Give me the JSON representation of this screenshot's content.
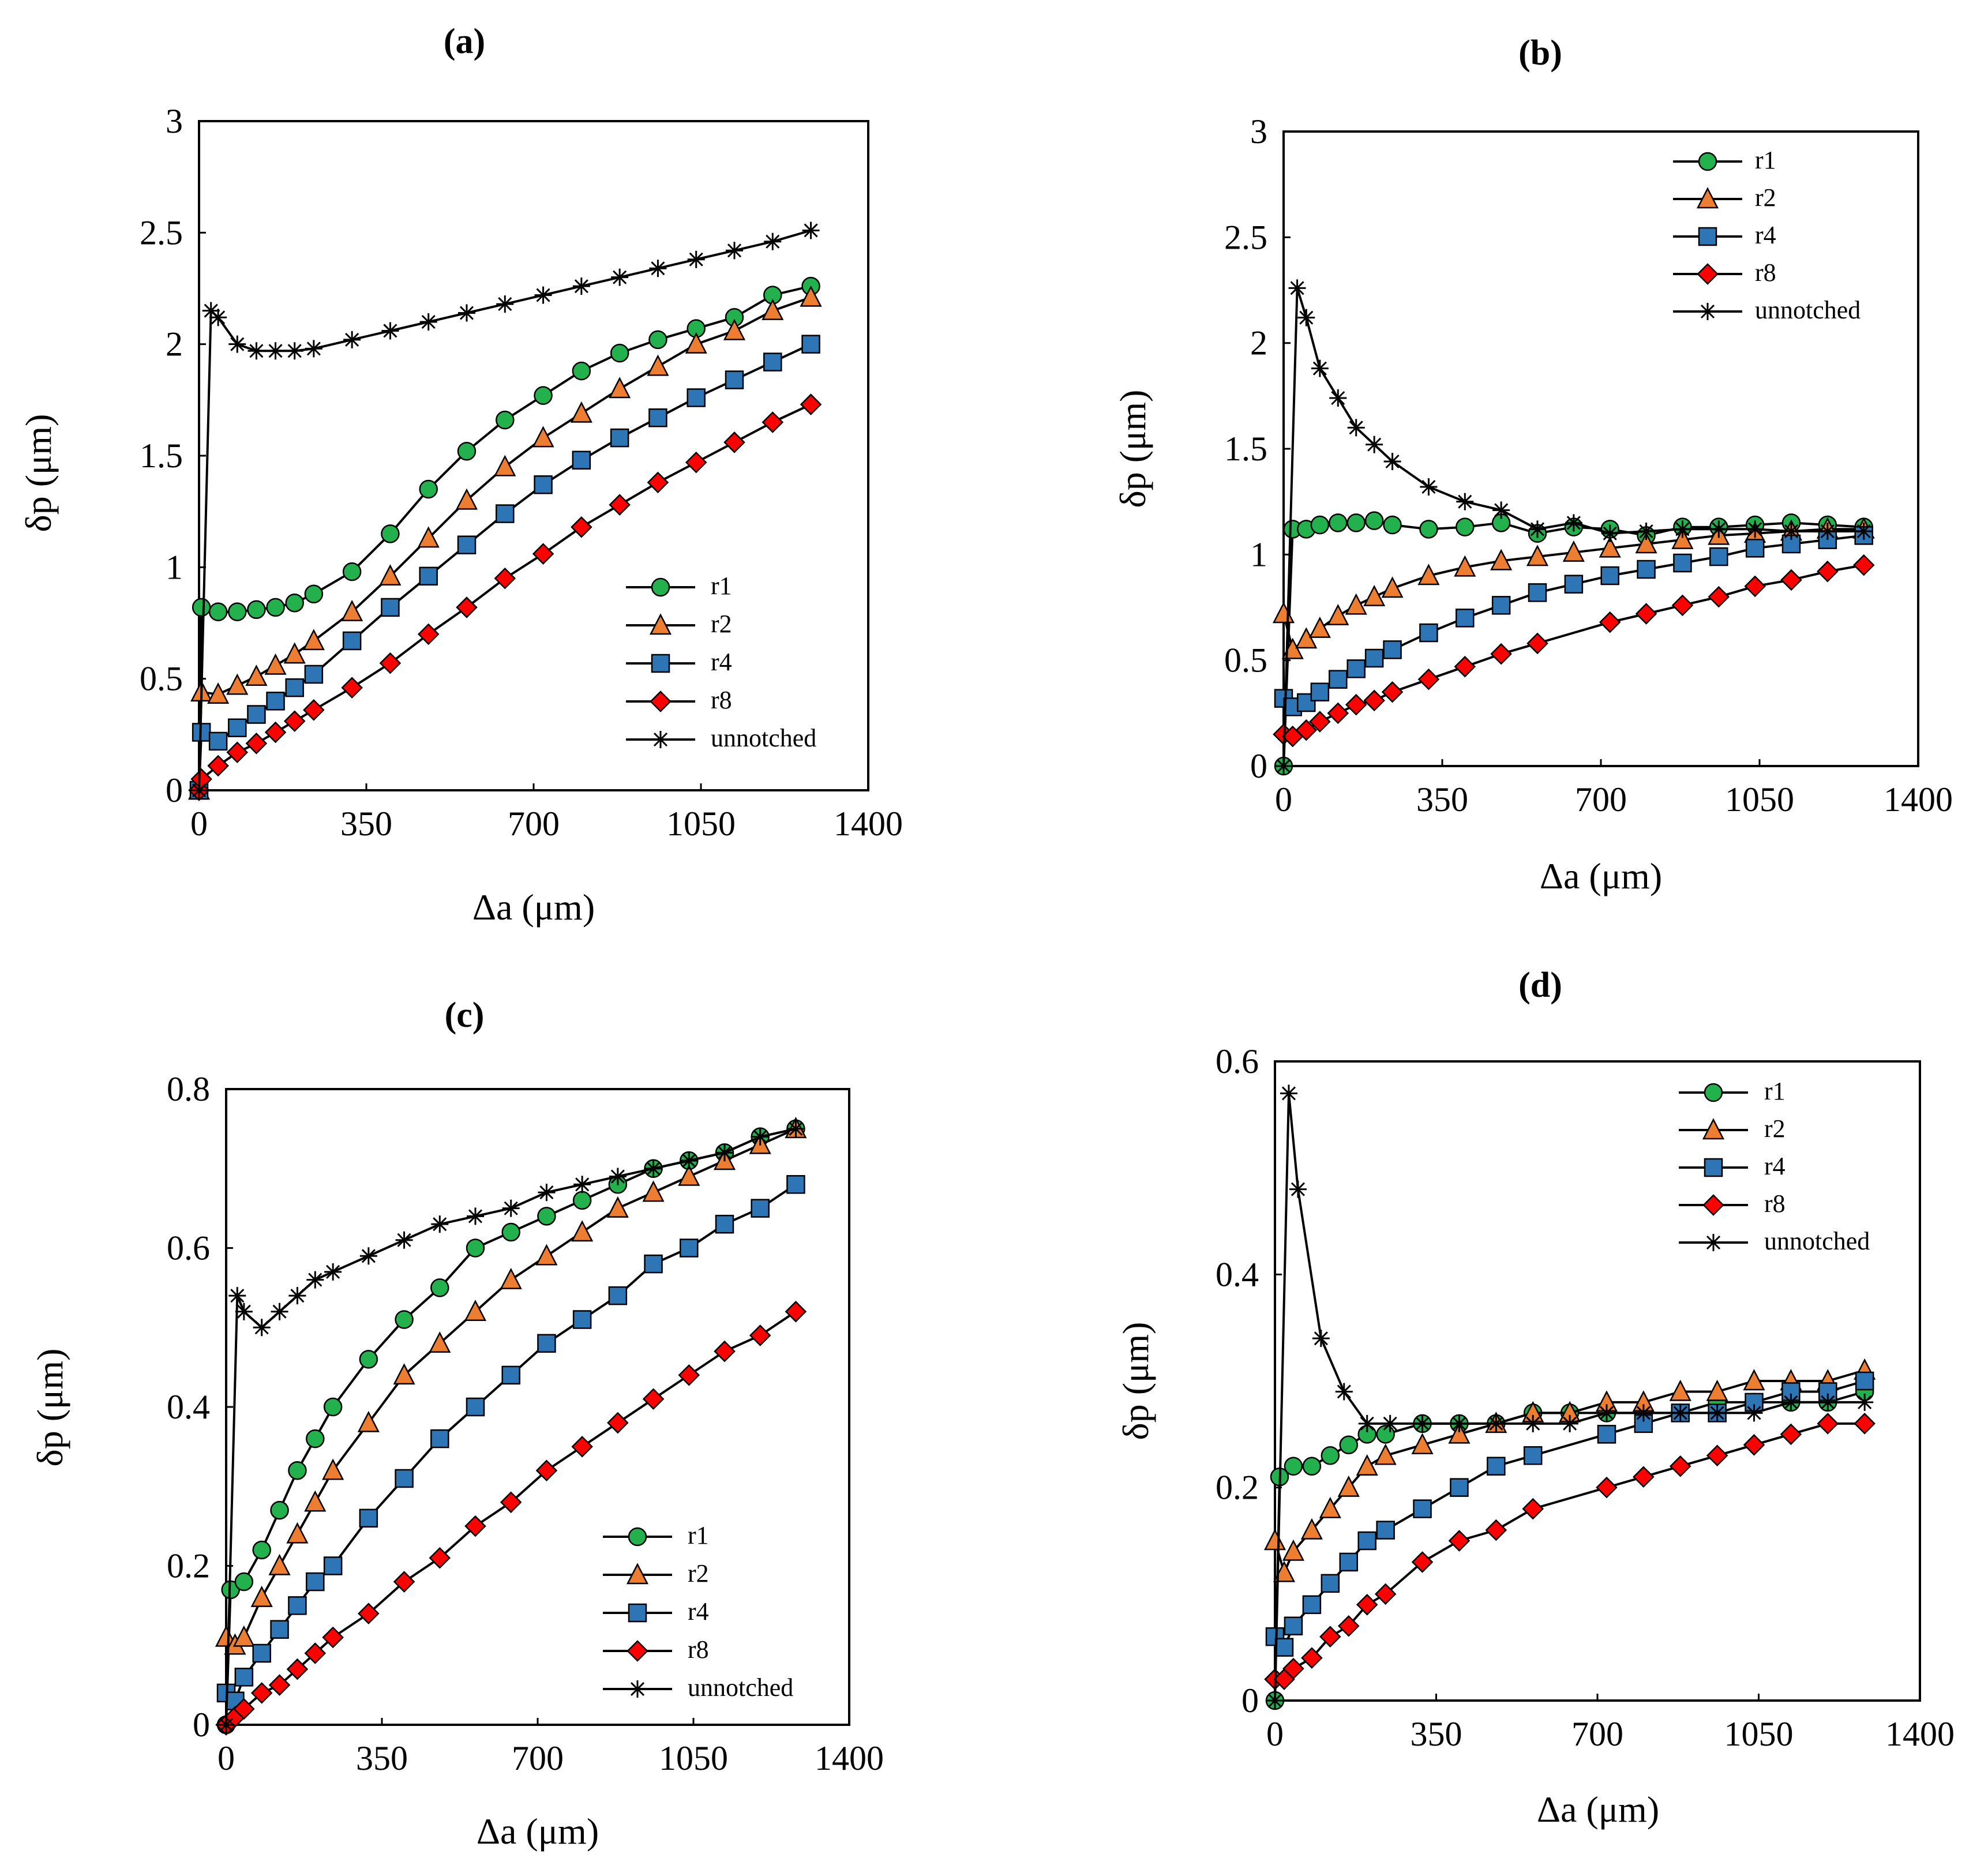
{
  "colors": {
    "r1": "#22b14c",
    "r2": "#ed7d31",
    "r4": "#2e75b6",
    "r8": "#ff0000",
    "unnotched": "#000000"
  },
  "chart_data": [
    {
      "type": "line",
      "panel": "(a)",
      "xlabel": "Δa (μm)",
      "ylabel": "δp (μm)",
      "xlim": [
        0,
        1400
      ],
      "ylim": [
        0,
        3
      ],
      "xticks": [
        0,
        350,
        700,
        1050,
        1400
      ],
      "yticks": [
        0,
        0.5,
        1,
        1.5,
        2,
        2.5,
        3
      ],
      "ytick_labels": [
        "0",
        "0.5",
        "1",
        "1.5",
        "2",
        "2.5",
        "3"
      ],
      "legend_position": "bottom-right",
      "series": [
        {
          "name": "r1",
          "marker": "circle",
          "x": [
            0,
            5,
            40,
            80,
            120,
            160,
            200,
            240,
            320,
            400,
            480,
            560,
            640,
            720,
            800,
            880,
            960,
            1040,
            1120,
            1200,
            1280
          ],
          "y": [
            0,
            0.82,
            0.8,
            0.8,
            0.81,
            0.82,
            0.84,
            0.88,
            0.98,
            1.15,
            1.35,
            1.52,
            1.66,
            1.77,
            1.88,
            1.96,
            2.02,
            2.07,
            2.12,
            2.22,
            2.26
          ]
        },
        {
          "name": "r2",
          "marker": "triangle",
          "x": [
            0,
            5,
            40,
            80,
            120,
            160,
            200,
            240,
            320,
            400,
            480,
            560,
            640,
            720,
            800,
            880,
            960,
            1040,
            1120,
            1200,
            1280
          ],
          "y": [
            0,
            0.44,
            0.43,
            0.47,
            0.51,
            0.56,
            0.61,
            0.67,
            0.8,
            0.96,
            1.13,
            1.3,
            1.45,
            1.58,
            1.69,
            1.8,
            1.9,
            2.0,
            2.06,
            2.15,
            2.21
          ]
        },
        {
          "name": "r4",
          "marker": "square",
          "x": [
            0,
            5,
            40,
            80,
            120,
            160,
            200,
            240,
            320,
            400,
            480,
            560,
            640,
            720,
            800,
            880,
            960,
            1040,
            1120,
            1200,
            1280
          ],
          "y": [
            0,
            0.26,
            0.22,
            0.28,
            0.34,
            0.4,
            0.46,
            0.52,
            0.67,
            0.82,
            0.96,
            1.1,
            1.24,
            1.37,
            1.48,
            1.58,
            1.67,
            1.76,
            1.84,
            1.92,
            2.0
          ]
        },
        {
          "name": "r8",
          "marker": "diamond",
          "x": [
            0,
            5,
            40,
            80,
            120,
            160,
            200,
            240,
            320,
            400,
            480,
            560,
            640,
            720,
            800,
            880,
            960,
            1040,
            1120,
            1200,
            1280
          ],
          "y": [
            0,
            0.05,
            0.11,
            0.17,
            0.21,
            0.26,
            0.31,
            0.36,
            0.46,
            0.57,
            0.7,
            0.82,
            0.95,
            1.06,
            1.18,
            1.28,
            1.38,
            1.47,
            1.56,
            1.65,
            1.73
          ]
        },
        {
          "name": "unnotched",
          "marker": "star",
          "x": [
            0,
            25,
            40,
            80,
            120,
            160,
            200,
            240,
            320,
            400,
            480,
            560,
            640,
            720,
            800,
            880,
            960,
            1040,
            1120,
            1200,
            1280
          ],
          "y": [
            0,
            2.15,
            2.12,
            2.0,
            1.97,
            1.97,
            1.97,
            1.98,
            2.02,
            2.06,
            2.1,
            2.14,
            2.18,
            2.22,
            2.26,
            2.3,
            2.34,
            2.38,
            2.42,
            2.46,
            2.51
          ]
        }
      ]
    },
    {
      "type": "line",
      "panel": "(b)",
      "xlabel": "Δa (μm)",
      "ylabel": "δp (μm)",
      "xlim": [
        0,
        1400
      ],
      "ylim": [
        0,
        3
      ],
      "xticks": [
        0,
        350,
        700,
        1050,
        1400
      ],
      "yticks": [
        0,
        0.5,
        1,
        1.5,
        2,
        2.5,
        3
      ],
      "ytick_labels": [
        "0",
        "0.5",
        "1",
        "1.5",
        "2",
        "2.5",
        "3"
      ],
      "legend_position": "top-right",
      "series": [
        {
          "name": "r1",
          "marker": "circle",
          "x": [
            0,
            20,
            50,
            80,
            120,
            160,
            200,
            240,
            320,
            400,
            480,
            560,
            640,
            720,
            800,
            880,
            960,
            1040,
            1120,
            1200,
            1280
          ],
          "y": [
            0,
            1.12,
            1.12,
            1.14,
            1.15,
            1.15,
            1.16,
            1.14,
            1.12,
            1.13,
            1.15,
            1.1,
            1.13,
            1.12,
            1.09,
            1.13,
            1.13,
            1.14,
            1.15,
            1.14,
            1.13
          ]
        },
        {
          "name": "r2",
          "marker": "triangle",
          "x": [
            0,
            20,
            50,
            80,
            120,
            160,
            200,
            240,
            320,
            400,
            480,
            560,
            640,
            720,
            800,
            880,
            960,
            1040,
            1120,
            1200,
            1280
          ],
          "y": [
            0.72,
            0.55,
            0.6,
            0.65,
            0.71,
            0.76,
            0.8,
            0.84,
            0.9,
            0.94,
            0.97,
            0.99,
            1.01,
            1.03,
            1.05,
            1.07,
            1.09,
            1.1,
            1.11,
            1.12,
            1.12
          ]
        },
        {
          "name": "r4",
          "marker": "square",
          "x": [
            0,
            20,
            50,
            80,
            120,
            160,
            200,
            240,
            320,
            400,
            480,
            560,
            640,
            720,
            800,
            880,
            960,
            1040,
            1120,
            1200,
            1280
          ],
          "y": [
            0.32,
            0.28,
            0.3,
            0.35,
            0.41,
            0.46,
            0.51,
            0.55,
            0.63,
            0.7,
            0.76,
            0.82,
            0.86,
            0.9,
            0.93,
            0.96,
            0.99,
            1.03,
            1.05,
            1.07,
            1.09
          ]
        },
        {
          "name": "r8",
          "marker": "diamond",
          "x": [
            0,
            20,
            50,
            80,
            120,
            160,
            200,
            240,
            320,
            400,
            480,
            560,
            720,
            800,
            880,
            960,
            1040,
            1120,
            1200,
            1280
          ],
          "y": [
            0.15,
            0.14,
            0.17,
            0.21,
            0.25,
            0.29,
            0.31,
            0.35,
            0.41,
            0.47,
            0.53,
            0.58,
            0.68,
            0.72,
            0.76,
            0.8,
            0.85,
            0.88,
            0.92,
            0.95
          ]
        },
        {
          "name": "unnotched",
          "marker": "star",
          "x": [
            0,
            30,
            50,
            80,
            120,
            160,
            200,
            240,
            320,
            400,
            480,
            560,
            640,
            720,
            800,
            880,
            960,
            1040,
            1120,
            1200,
            1280
          ],
          "y": [
            0,
            2.26,
            2.12,
            1.88,
            1.74,
            1.6,
            1.52,
            1.44,
            1.32,
            1.25,
            1.21,
            1.12,
            1.15,
            1.1,
            1.11,
            1.12,
            1.12,
            1.12,
            1.11,
            1.11,
            1.11
          ]
        }
      ]
    },
    {
      "type": "line",
      "panel": "(c)",
      "xlabel": "Δa (μm)",
      "ylabel": "δp (μm)",
      "xlim": [
        0,
        1400
      ],
      "ylim": [
        0,
        0.8
      ],
      "xticks": [
        0,
        350,
        700,
        1050,
        1400
      ],
      "yticks": [
        0,
        0.2,
        0.4,
        0.6,
        0.8
      ],
      "ytick_labels": [
        "0",
        "0.2",
        "0.4",
        "0.6",
        "0.8"
      ],
      "legend_position": "bottom-right",
      "series": [
        {
          "name": "r1",
          "marker": "circle",
          "x": [
            0,
            10,
            40,
            80,
            120,
            160,
            200,
            240,
            320,
            400,
            480,
            560,
            640,
            720,
            800,
            880,
            960,
            1040,
            1120,
            1200,
            1280
          ],
          "y": [
            0,
            0.17,
            0.18,
            0.22,
            0.27,
            0.32,
            0.36,
            0.4,
            0.46,
            0.51,
            0.55,
            0.6,
            0.62,
            0.64,
            0.66,
            0.68,
            0.7,
            0.71,
            0.72,
            0.74,
            0.75
          ]
        },
        {
          "name": "r2",
          "marker": "triangle",
          "x": [
            0,
            20,
            40,
            80,
            120,
            160,
            200,
            240,
            320,
            400,
            480,
            560,
            640,
            720,
            800,
            880,
            960,
            1040,
            1120,
            1200,
            1280
          ],
          "y": [
            0.11,
            0.1,
            0.11,
            0.16,
            0.2,
            0.24,
            0.28,
            0.32,
            0.38,
            0.44,
            0.48,
            0.52,
            0.56,
            0.59,
            0.62,
            0.65,
            0.67,
            0.69,
            0.71,
            0.73,
            0.75
          ]
        },
        {
          "name": "r4",
          "marker": "square",
          "x": [
            0,
            20,
            40,
            80,
            120,
            160,
            200,
            240,
            320,
            400,
            480,
            560,
            640,
            720,
            800,
            880,
            960,
            1040,
            1120,
            1200,
            1280
          ],
          "y": [
            0.04,
            0.03,
            0.06,
            0.09,
            0.12,
            0.15,
            0.18,
            0.2,
            0.26,
            0.31,
            0.36,
            0.4,
            0.44,
            0.48,
            0.51,
            0.54,
            0.58,
            0.6,
            0.63,
            0.65,
            0.68
          ]
        },
        {
          "name": "r8",
          "marker": "diamond",
          "x": [
            0,
            20,
            40,
            80,
            120,
            160,
            200,
            240,
            320,
            400,
            480,
            560,
            640,
            720,
            800,
            880,
            960,
            1040,
            1120,
            1200,
            1280
          ],
          "y": [
            0,
            0.01,
            0.02,
            0.04,
            0.05,
            0.07,
            0.09,
            0.11,
            0.14,
            0.18,
            0.21,
            0.25,
            0.28,
            0.32,
            0.35,
            0.38,
            0.41,
            0.44,
            0.47,
            0.49,
            0.52
          ]
        },
        {
          "name": "unnotched",
          "marker": "star",
          "x": [
            0,
            25,
            40,
            80,
            120,
            160,
            200,
            240,
            320,
            400,
            480,
            560,
            640,
            720,
            800,
            880,
            960,
            1040,
            1120,
            1200,
            1280
          ],
          "y": [
            0,
            0.54,
            0.52,
            0.5,
            0.52,
            0.54,
            0.56,
            0.57,
            0.59,
            0.61,
            0.63,
            0.64,
            0.65,
            0.67,
            0.68,
            0.69,
            0.7,
            0.71,
            0.72,
            0.74,
            0.75
          ]
        }
      ]
    },
    {
      "type": "line",
      "panel": "(d)",
      "xlabel": "Δa (μm)",
      "ylabel": "δp (μm)",
      "xlim": [
        0,
        1400
      ],
      "ylim": [
        0,
        0.6
      ],
      "xticks": [
        0,
        350,
        700,
        1050,
        1400
      ],
      "yticks": [
        0,
        0.2,
        0.4,
        0.6
      ],
      "ytick_labels": [
        "0",
        "0.2",
        "0.4",
        "0.6"
      ],
      "legend_position": "top-right",
      "series": [
        {
          "name": "r1",
          "marker": "circle",
          "x": [
            0,
            10,
            40,
            80,
            120,
            160,
            200,
            240,
            320,
            400,
            480,
            560,
            640,
            720,
            800,
            880,
            960,
            1040,
            1120,
            1200,
            1280
          ],
          "y": [
            0,
            0.21,
            0.22,
            0.22,
            0.23,
            0.24,
            0.25,
            0.25,
            0.26,
            0.26,
            0.26,
            0.27,
            0.27,
            0.27,
            0.27,
            0.27,
            0.28,
            0.28,
            0.28,
            0.28,
            0.29
          ]
        },
        {
          "name": "r2",
          "marker": "triangle",
          "x": [
            0,
            20,
            40,
            80,
            120,
            160,
            200,
            240,
            320,
            400,
            480,
            560,
            640,
            720,
            800,
            880,
            960,
            1040,
            1120,
            1200,
            1280
          ],
          "y": [
            0.15,
            0.12,
            0.14,
            0.16,
            0.18,
            0.2,
            0.22,
            0.23,
            0.24,
            0.25,
            0.26,
            0.27,
            0.27,
            0.28,
            0.28,
            0.29,
            0.29,
            0.3,
            0.3,
            0.3,
            0.31
          ]
        },
        {
          "name": "r4",
          "marker": "square",
          "x": [
            0,
            20,
            40,
            80,
            120,
            160,
            200,
            240,
            320,
            400,
            480,
            560,
            720,
            800,
            880,
            960,
            1040,
            1120,
            1200,
            1280
          ],
          "y": [
            0.06,
            0.05,
            0.07,
            0.09,
            0.11,
            0.13,
            0.15,
            0.16,
            0.18,
            0.2,
            0.22,
            0.23,
            0.25,
            0.26,
            0.27,
            0.27,
            0.28,
            0.29,
            0.29,
            0.3
          ]
        },
        {
          "name": "r8",
          "marker": "diamond",
          "x": [
            0,
            20,
            40,
            80,
            120,
            160,
            200,
            240,
            320,
            400,
            480,
            560,
            720,
            800,
            880,
            960,
            1040,
            1120,
            1200,
            1280
          ],
          "y": [
            0.02,
            0.02,
            0.03,
            0.04,
            0.06,
            0.07,
            0.09,
            0.1,
            0.13,
            0.15,
            0.16,
            0.18,
            0.2,
            0.21,
            0.22,
            0.23,
            0.24,
            0.25,
            0.26,
            0.26
          ]
        },
        {
          "name": "unnotched",
          "marker": "star",
          "x": [
            0,
            30,
            50,
            100,
            150,
            200,
            250,
            320,
            400,
            480,
            560,
            640,
            720,
            800,
            880,
            960,
            1040,
            1120,
            1200,
            1280
          ],
          "y": [
            0,
            0.57,
            0.48,
            0.34,
            0.29,
            0.26,
            0.26,
            0.26,
            0.26,
            0.26,
            0.26,
            0.26,
            0.27,
            0.27,
            0.27,
            0.27,
            0.27,
            0.28,
            0.28,
            0.28
          ]
        }
      ]
    }
  ]
}
